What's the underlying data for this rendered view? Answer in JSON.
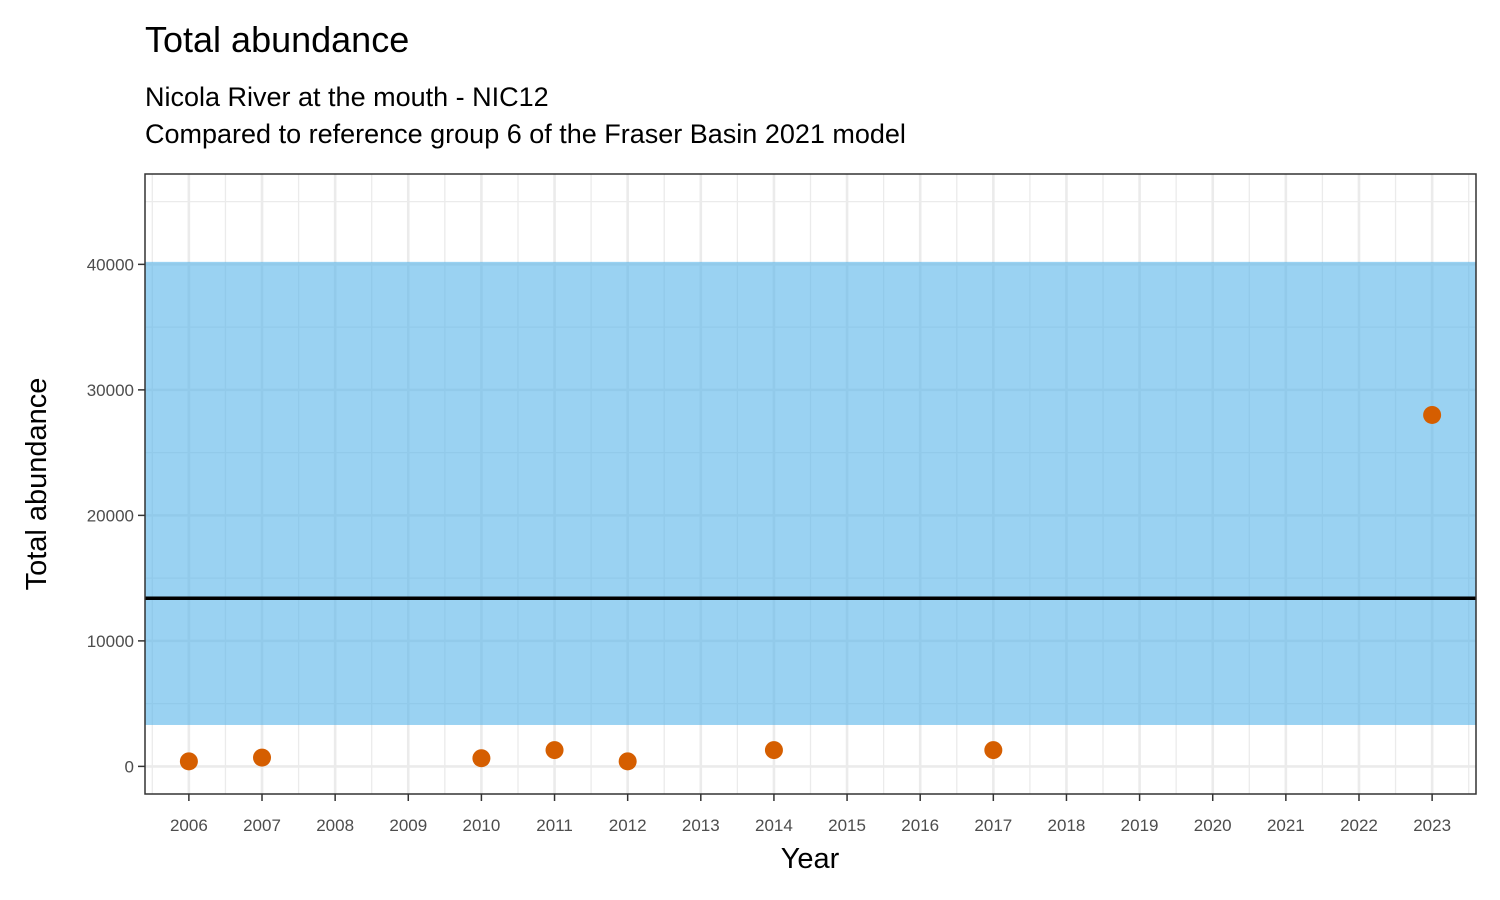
{
  "chart_data": {
    "type": "scatter",
    "title": "Total abundance",
    "subtitle_lines": [
      "Nicola River at the mouth - NIC12",
      "Compared to reference group 6 of the Fraser Basin 2021 model"
    ],
    "xlabel": "Year",
    "ylabel": "Total abundance",
    "x_categories": [
      "2006",
      "2007",
      "2008",
      "2009",
      "2010",
      "2011",
      "2012",
      "2013",
      "2014",
      "2015",
      "2016",
      "2017",
      "2018",
      "2019",
      "2020",
      "2021",
      "2022",
      "2023"
    ],
    "x_tick_labels": [
      "2006",
      "2007",
      "2008",
      "2009",
      "2010",
      "2011",
      "2012",
      "2013",
      "2014",
      "2015",
      "2016",
      "2017",
      "2018",
      "2019",
      "2020",
      "2021",
      "2022",
      "2023"
    ],
    "y_ticks": [
      0,
      10000,
      20000,
      30000,
      40000
    ],
    "y_tick_labels": [
      "0",
      "10000",
      "20000",
      "30000",
      "40000"
    ],
    "ylim": [
      -2200,
      47200
    ],
    "points": [
      {
        "x": "2006",
        "y": 400
      },
      {
        "x": "2007",
        "y": 700
      },
      {
        "x": "2010",
        "y": 650
      },
      {
        "x": "2011",
        "y": 1300
      },
      {
        "x": "2012",
        "y": 400
      },
      {
        "x": "2014",
        "y": 1300
      },
      {
        "x": "2017",
        "y": 1300
      },
      {
        "x": "2023",
        "y": 28000
      }
    ],
    "reference_band": {
      "lower": 3300,
      "upper": 40200
    },
    "reference_line": 13400,
    "grid": true,
    "colors": {
      "points": "#d55e00",
      "band": "#56b4e9",
      "line": "#000000",
      "grid": "#ebebeb",
      "panel_border": "#333333"
    }
  }
}
